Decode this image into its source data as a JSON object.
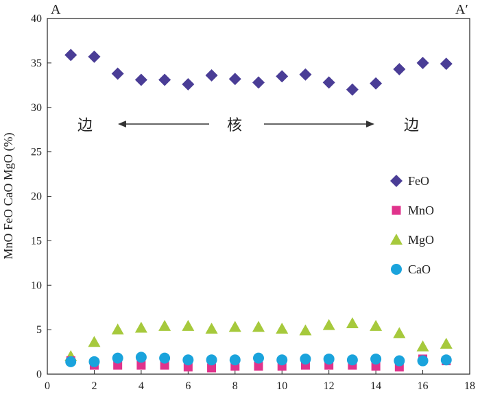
{
  "chart_data": {
    "type": "scatter",
    "xlim": [
      0,
      18
    ],
    "ylim": [
      0,
      40
    ],
    "xticks": [
      0,
      2,
      4,
      6,
      8,
      10,
      12,
      14,
      16,
      18
    ],
    "yticks": [
      0,
      5,
      10,
      15,
      20,
      25,
      30,
      35,
      40
    ],
    "xlabel": "",
    "ylabel": "MnO FeO CaO MgO (%)",
    "grid": false,
    "legend_position": "right-middle",
    "corner_labels": {
      "left": "A",
      "right": "A′"
    },
    "annotations": {
      "left": "边",
      "center": "核",
      "right": "边",
      "arrows": "center label with arrows pointing to left and right labels at y≈28"
    },
    "series": [
      {
        "name": "FeO",
        "marker": "diamond",
        "color": "#4a3d96",
        "x": [
          1,
          2,
          3,
          4,
          5,
          6,
          7,
          8,
          9,
          10,
          11,
          12,
          13,
          14,
          15,
          16,
          17
        ],
        "y": [
          35.9,
          35.7,
          33.8,
          33.1,
          33.1,
          32.6,
          33.6,
          33.2,
          32.8,
          33.5,
          33.7,
          32.8,
          32.0,
          32.7,
          34.3,
          35.0,
          34.9
        ]
      },
      {
        "name": "MnO",
        "marker": "square",
        "color": "#e0338c",
        "x": [
          1,
          2,
          3,
          4,
          5,
          6,
          7,
          8,
          9,
          10,
          11,
          12,
          13,
          14,
          15,
          16,
          17
        ],
        "y": [
          1.5,
          1.0,
          1.0,
          1.0,
          1.0,
          0.8,
          0.7,
          0.9,
          0.9,
          0.9,
          1.0,
          1.0,
          1.0,
          0.9,
          0.8,
          1.7,
          1.5
        ]
      },
      {
        "name": "MgO",
        "marker": "triangle",
        "color": "#a6c93c",
        "x": [
          1,
          2,
          3,
          4,
          5,
          6,
          7,
          8,
          9,
          10,
          11,
          12,
          13,
          14,
          15,
          16,
          17
        ],
        "y": [
          2.0,
          3.6,
          5.0,
          5.2,
          5.4,
          5.4,
          5.1,
          5.3,
          5.3,
          5.1,
          4.9,
          5.5,
          5.7,
          5.4,
          4.6,
          3.1,
          3.4
        ]
      },
      {
        "name": "CaO",
        "marker": "circle",
        "color": "#1aa3dc",
        "x": [
          1,
          2,
          3,
          4,
          5,
          6,
          7,
          8,
          9,
          10,
          11,
          12,
          13,
          14,
          15,
          16,
          17
        ],
        "y": [
          1.4,
          1.4,
          1.8,
          1.9,
          1.8,
          1.6,
          1.6,
          1.6,
          1.8,
          1.6,
          1.7,
          1.7,
          1.6,
          1.7,
          1.5,
          1.5,
          1.6
        ]
      }
    ]
  }
}
